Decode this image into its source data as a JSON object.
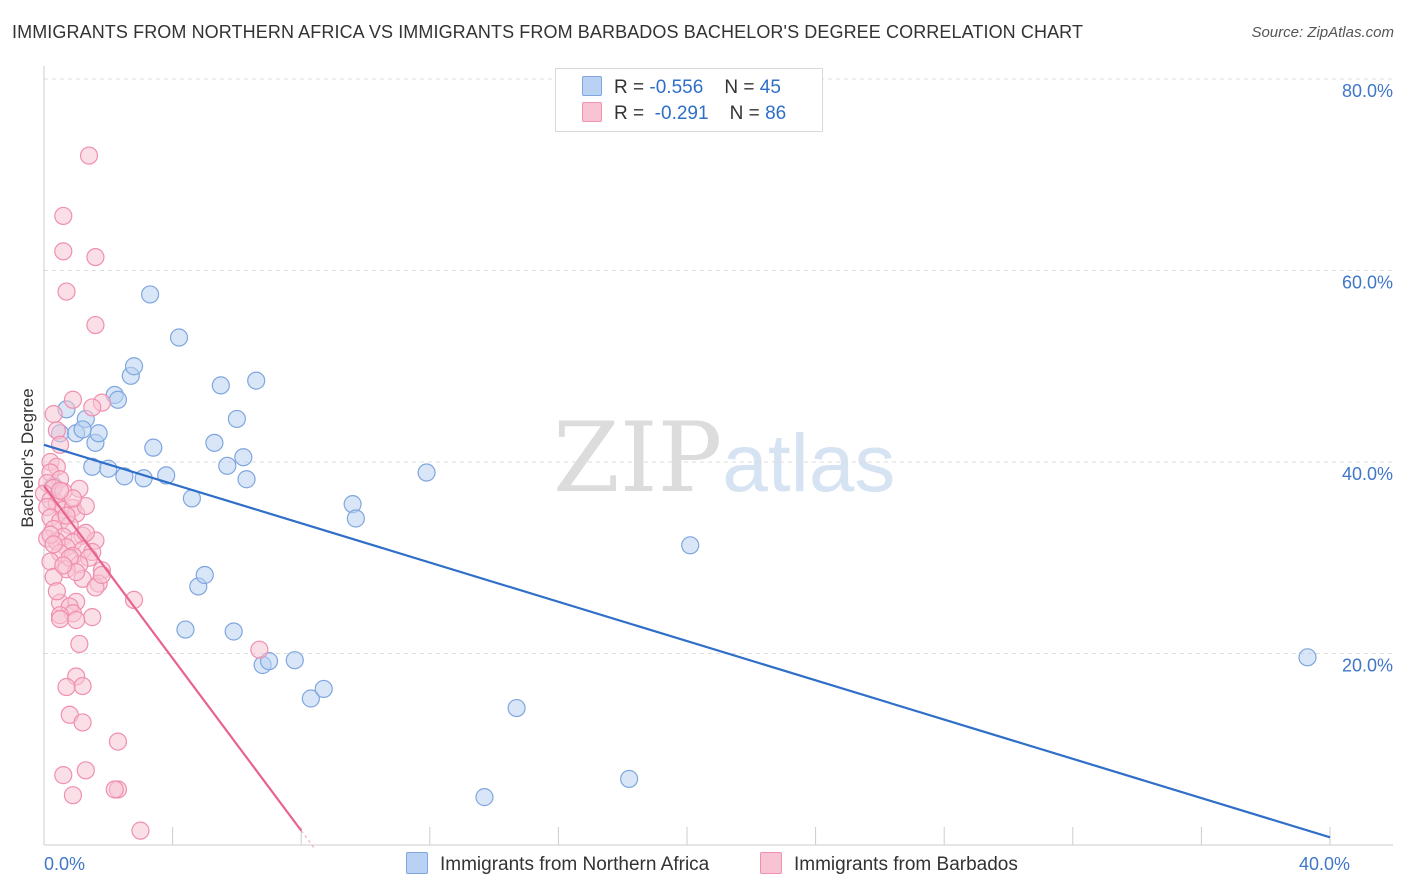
{
  "title": "IMMIGRANTS FROM NORTHERN AFRICA VS IMMIGRANTS FROM BARBADOS BACHELOR'S DEGREE CORRELATION CHART",
  "source": "Source: ZipAtlas.com",
  "watermark": {
    "zip": "ZIP",
    "atlas": "atlas"
  },
  "colors": {
    "blue_fill": "#b9d1f3",
    "blue_stroke": "#7fa6de",
    "blue_line": "#2f6fc8",
    "pink_fill": "#f8c4d4",
    "pink_stroke": "#f08fb0",
    "pink_line": "#e8638f",
    "axis_text": "#3f77c8",
    "grid": "#dddddd"
  },
  "legend": {
    "rows": [
      {
        "r_label": "R =",
        "r_value": "-0.556",
        "n_label": "N =",
        "n_value": "45"
      },
      {
        "r_label": "R =",
        "r_value": "-0.291",
        "n_label": "N =",
        "n_value": "86"
      }
    ]
  },
  "bottom_legend": [
    "Immigrants from Northern Africa",
    "Immigrants from Barbados"
  ],
  "chart_data": {
    "type": "scatter",
    "title": "IMMIGRANTS FROM NORTHERN AFRICA VS IMMIGRANTS FROM BARBADOS BACHELOR'S DEGREE CORRELATION CHART",
    "xlabel": "",
    "ylabel": "Bachelor's Degree",
    "xlim": [
      0,
      40
    ],
    "ylim": [
      0,
      80
    ],
    "x_tick_labels": [
      {
        "value": 0,
        "label": "0.0%"
      },
      {
        "value": 40,
        "label": "40.0%"
      }
    ],
    "y_tick_labels": [
      {
        "value": 20,
        "label": "20.0%"
      },
      {
        "value": 40,
        "label": "40.0%"
      },
      {
        "value": 60,
        "label": "60.0%"
      },
      {
        "value": 80,
        "label": "80.0%"
      }
    ],
    "grid": true,
    "series": [
      {
        "name": "Immigrants from Northern Africa",
        "color": "#7fa6de",
        "trend": {
          "x": [
            0,
            40
          ],
          "y": [
            41.8,
            0.8
          ]
        },
        "points": [
          [
            0.3,
            37.5
          ],
          [
            0.5,
            43.0
          ],
          [
            0.7,
            45.5
          ],
          [
            1.0,
            43.0
          ],
          [
            1.3,
            44.5
          ],
          [
            1.6,
            42.0
          ],
          [
            1.5,
            39.5
          ],
          [
            1.7,
            43.0
          ],
          [
            2.0,
            39.3
          ],
          [
            2.2,
            47.0
          ],
          [
            2.3,
            46.5
          ],
          [
            2.5,
            38.5
          ],
          [
            2.7,
            49.0
          ],
          [
            2.8,
            50.0
          ],
          [
            3.1,
            38.3
          ],
          [
            3.3,
            57.5
          ],
          [
            3.4,
            41.5
          ],
          [
            3.8,
            38.6
          ],
          [
            4.2,
            53.0
          ],
          [
            4.6,
            36.2
          ],
          [
            4.8,
            27.0
          ],
          [
            4.4,
            22.5
          ],
          [
            5.0,
            28.2
          ],
          [
            5.3,
            42.0
          ],
          [
            5.5,
            48.0
          ],
          [
            5.7,
            39.6
          ],
          [
            5.9,
            22.3
          ],
          [
            6.0,
            44.5
          ],
          [
            6.2,
            40.5
          ],
          [
            6.3,
            38.2
          ],
          [
            6.6,
            48.5
          ],
          [
            6.8,
            18.8
          ],
          [
            7.0,
            19.2
          ],
          [
            7.8,
            19.3
          ],
          [
            8.3,
            15.3
          ],
          [
            8.7,
            16.3
          ],
          [
            9.6,
            35.6
          ],
          [
            9.7,
            34.1
          ],
          [
            11.9,
            38.9
          ],
          [
            13.7,
            5.0
          ],
          [
            14.7,
            14.3
          ],
          [
            18.2,
            6.9
          ],
          [
            20.1,
            31.3
          ],
          [
            39.3,
            19.6
          ],
          [
            1.2,
            43.4
          ]
        ]
      },
      {
        "name": "Immigrants from Barbados",
        "color": "#f08fb0",
        "trend": {
          "x": [
            0,
            8.0
          ],
          "y": [
            37.5,
            1.5
          ]
        },
        "points": [
          [
            1.4,
            72.0
          ],
          [
            0.6,
            65.7
          ],
          [
            0.6,
            62.0
          ],
          [
            1.6,
            61.4
          ],
          [
            0.7,
            57.8
          ],
          [
            1.6,
            54.3
          ],
          [
            1.8,
            46.2
          ],
          [
            1.5,
            45.7
          ],
          [
            0.9,
            46.5
          ],
          [
            0.3,
            45.0
          ],
          [
            0.4,
            43.3
          ],
          [
            0.5,
            41.8
          ],
          [
            0.2,
            40.0
          ],
          [
            0.4,
            39.5
          ],
          [
            0.2,
            38.9
          ],
          [
            0.5,
            38.2
          ],
          [
            0.1,
            37.8
          ],
          [
            0.3,
            37.3
          ],
          [
            1.1,
            37.2
          ],
          [
            0.0,
            36.7
          ],
          [
            0.2,
            36.0
          ],
          [
            0.4,
            35.7
          ],
          [
            0.1,
            35.3
          ],
          [
            0.6,
            35.0
          ],
          [
            0.9,
            35.2
          ],
          [
            1.0,
            34.6
          ],
          [
            0.2,
            34.2
          ],
          [
            0.5,
            33.8
          ],
          [
            0.8,
            33.4
          ],
          [
            0.3,
            33.0
          ],
          [
            1.2,
            32.3
          ],
          [
            0.6,
            32.2
          ],
          [
            0.1,
            32.0
          ],
          [
            0.4,
            31.7
          ],
          [
            0.9,
            31.6
          ],
          [
            1.6,
            31.8
          ],
          [
            0.7,
            31.1
          ],
          [
            1.2,
            30.8
          ],
          [
            1.5,
            30.6
          ],
          [
            0.5,
            30.5
          ],
          [
            0.9,
            30.2
          ],
          [
            1.4,
            30.0
          ],
          [
            0.2,
            29.6
          ],
          [
            1.1,
            29.3
          ],
          [
            0.7,
            28.8
          ],
          [
            1.8,
            28.7
          ],
          [
            0.3,
            28.0
          ],
          [
            1.2,
            27.8
          ],
          [
            1.7,
            27.3
          ],
          [
            1.6,
            26.9
          ],
          [
            2.8,
            25.6
          ],
          [
            1.0,
            25.4
          ],
          [
            0.5,
            25.3
          ],
          [
            0.8,
            24.9
          ],
          [
            0.9,
            24.2
          ],
          [
            0.5,
            24.0
          ],
          [
            1.5,
            23.8
          ],
          [
            0.5,
            23.6
          ],
          [
            1.0,
            23.5
          ],
          [
            1.1,
            21.0
          ],
          [
            6.7,
            20.4
          ],
          [
            1.0,
            17.6
          ],
          [
            1.2,
            16.6
          ],
          [
            0.7,
            16.5
          ],
          [
            0.8,
            13.6
          ],
          [
            1.2,
            12.8
          ],
          [
            2.3,
            10.8
          ],
          [
            1.3,
            7.8
          ],
          [
            0.6,
            7.3
          ],
          [
            0.9,
            5.2
          ],
          [
            2.3,
            5.8
          ],
          [
            2.2,
            5.8
          ],
          [
            3.0,
            1.5
          ],
          [
            0.8,
            30.0
          ],
          [
            1.3,
            35.4
          ],
          [
            0.6,
            36.9
          ],
          [
            0.2,
            32.4
          ],
          [
            0.7,
            34.4
          ],
          [
            1.0,
            28.5
          ],
          [
            0.4,
            26.5
          ],
          [
            1.8,
            28.2
          ],
          [
            0.3,
            31.4
          ],
          [
            0.6,
            29.2
          ],
          [
            1.3,
            32.6
          ],
          [
            0.9,
            36.2
          ],
          [
            0.5,
            37.0
          ]
        ]
      }
    ]
  }
}
